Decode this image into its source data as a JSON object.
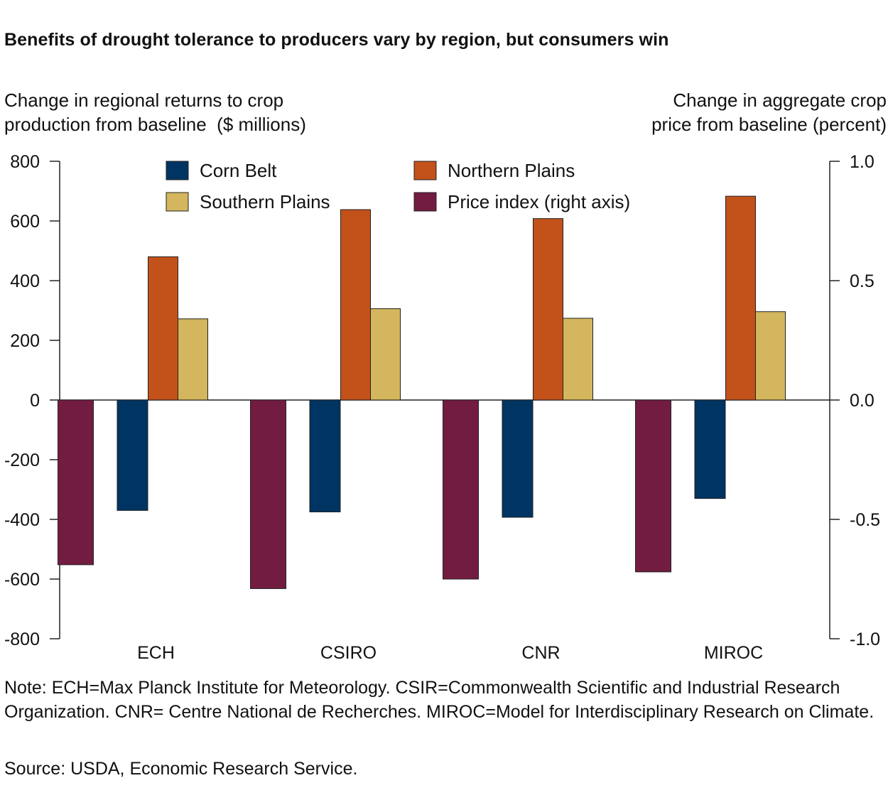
{
  "title": "Benefits of drought tolerance to producers vary by region, but consumers win",
  "left_axis_title": "Change in regional returns to crop\nproduction from baseline  ($ millions)",
  "right_axis_title": "Change in aggregate crop\nprice from baseline (percent)",
  "note": "Note: ECH=Max Planck Institute for Meteorology.  CSIR=Commonwealth Scientific and Industrial Research Organization. CNR= Centre National de Recherches. MIROC=Model for Interdisciplinary Research on Climate.",
  "source": "Source: USDA, Economic Research Service.",
  "chart_data": {
    "type": "bar",
    "categories": [
      "ECH",
      "CSIRO",
      "CNR",
      "MIROC"
    ],
    "ylim_left": [
      -800,
      800
    ],
    "ylim_right": [
      -1.0,
      1.0
    ],
    "left_ticks": [
      "800",
      "600",
      "400",
      "200",
      "0",
      "-200",
      "-400",
      "-600",
      "-800"
    ],
    "right_ticks": [
      "1.0",
      "0.5",
      "0.0",
      "-0.5",
      "-1.0"
    ],
    "legend_position": "top",
    "series": [
      {
        "name": "Price index (right axis)",
        "axis": "right",
        "color": "#731c42",
        "values": [
          -0.69,
          -0.79,
          -0.75,
          -0.72
        ]
      },
      {
        "name": "Corn Belt",
        "axis": "left",
        "color": "#003462",
        "values": [
          -370,
          -375,
          -393,
          -330
        ]
      },
      {
        "name": "Northern Plains",
        "axis": "left",
        "color": "#c2521a",
        "values": [
          480,
          638,
          608,
          683
        ]
      },
      {
        "name": "Southern Plains",
        "axis": "left",
        "color": "#d3b65d",
        "values": [
          272,
          306,
          274,
          296
        ]
      }
    ],
    "legend_order": [
      "Corn Belt",
      "Northern Plains",
      "Southern Plains",
      "Price index (right axis)"
    ]
  }
}
